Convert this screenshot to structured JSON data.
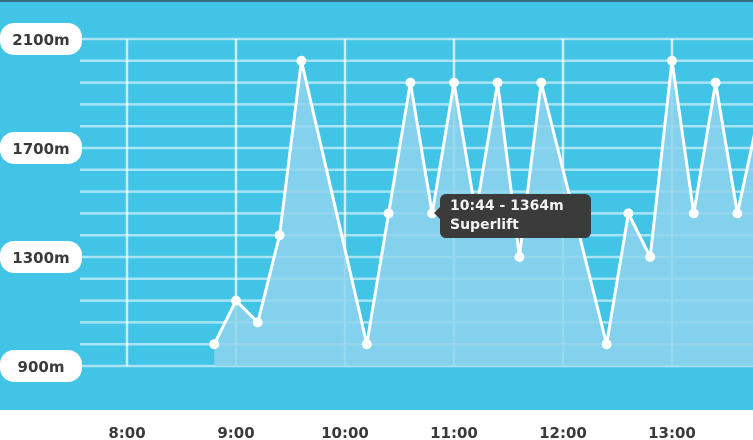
{
  "chart_data": {
    "type": "area",
    "title": "",
    "xlabel": "",
    "ylabel": "",
    "x_ticks": [
      "8:00",
      "9:00",
      "10:00",
      "11:00",
      "12:00",
      "13:00"
    ],
    "y_ticks": [
      "900m",
      "1300m",
      "1700m",
      "2100m"
    ],
    "ylim": [
      900,
      2100
    ],
    "grid": true,
    "colors": {
      "background": "#41c4e6",
      "fill": "#8fd4ec",
      "line": "#ffffff",
      "label_bg": "#ffffff",
      "tooltip_bg": "#3b3b3b"
    },
    "series": [
      {
        "x": [
          "8:48",
          "9:00",
          "9:12",
          "9:24",
          "9:36",
          "10:12",
          "10:24",
          "10:36",
          "10:48",
          "11:00",
          "11:12",
          "11:24",
          "11:36",
          "11:48",
          "12:24",
          "12:36",
          "12:48",
          "13:00",
          "13:12",
          "13:24",
          "13:36",
          "13:48"
        ],
        "values": [
          980,
          1140,
          1060,
          1380,
          2020,
          980,
          1460,
          1940,
          1460,
          1940,
          1460,
          1940,
          1300,
          1940,
          980,
          1460,
          1300,
          2020,
          1460,
          1940,
          1460,
          1830
        ]
      }
    ],
    "tooltip": {
      "line1": "10:44 - 1364m",
      "line2": "Superlift"
    }
  }
}
